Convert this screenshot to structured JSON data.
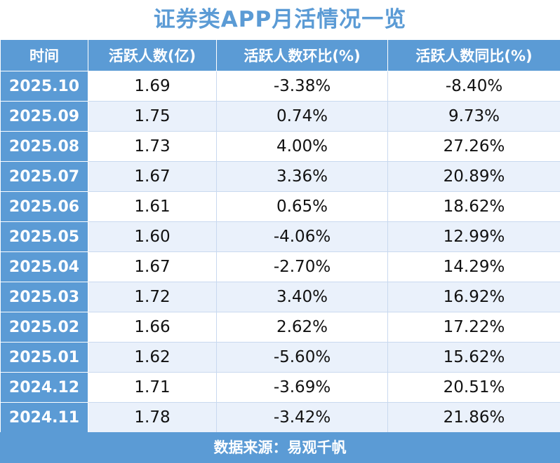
{
  "title": "证券类APP月活情况一览",
  "table": {
    "header": [
      "时间",
      "活跃人数(亿)",
      "活跃人数环比(%)",
      "活跃人数同比(%)"
    ],
    "rows": [
      [
        "2025.10",
        "1.69",
        "-3.38%",
        "-8.40%"
      ],
      [
        "2025.09",
        "1.75",
        "0.74%",
        "9.73%"
      ],
      [
        "2025.08",
        "1.73",
        "4.00%",
        "27.26%"
      ],
      [
        "2025.07",
        "1.67",
        "3.36%",
        "20.89%"
      ],
      [
        "2025.06",
        "1.61",
        "0.65%",
        "18.62%"
      ],
      [
        "2025.05",
        "1.60",
        "-4.06%",
        "12.99%"
      ],
      [
        "2025.04",
        "1.67",
        "-2.70%",
        "14.29%"
      ],
      [
        "2025.03",
        "1.72",
        "3.40%",
        "16.92%"
      ],
      [
        "2025.02",
        "1.66",
        "2.62%",
        "17.22%"
      ],
      [
        "2025.01",
        "1.62",
        "-5.60%",
        "15.62%"
      ],
      [
        "2024.12",
        "1.71",
        "-3.69%",
        "20.51%"
      ],
      [
        "2024.11",
        "1.78",
        "-3.42%",
        "21.86%"
      ]
    ]
  },
  "source": "数据来源：易观千帆"
}
